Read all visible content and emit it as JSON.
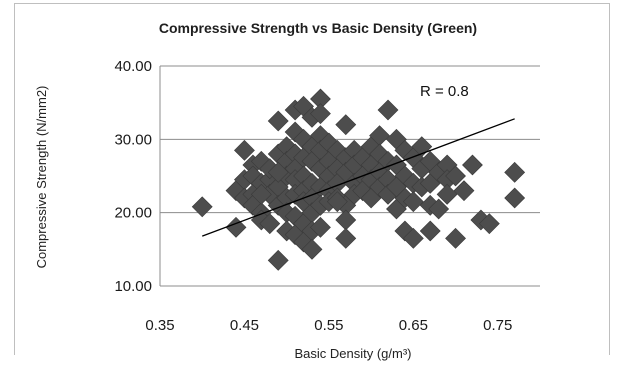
{
  "chart_data": {
    "type": "scatter",
    "title": "Compressive Strength vs Basic Density (Green)",
    "xlabel": "Basic Density (g/m³)",
    "ylabel": "Compressive Strength (N/mm2)",
    "xlim": [
      0.35,
      0.8
    ],
    "ylim": [
      10,
      40
    ],
    "xticks": [
      "0.35",
      "0.45",
      "0.55",
      "0.65",
      "0.75"
    ],
    "yticks": [
      "10.00",
      "20.00",
      "30.00",
      "40.00"
    ],
    "grid": "horizontal",
    "marker": "diamond",
    "marker_color": "#4d4d4d",
    "annotation": "R = 0.8",
    "trendline": {
      "x": [
        0.4,
        0.77
      ],
      "y": [
        16.8,
        32.8
      ]
    },
    "points": [
      [
        0.4,
        20.8
      ],
      [
        0.44,
        18.0
      ],
      [
        0.44,
        23.0
      ],
      [
        0.45,
        28.5
      ],
      [
        0.45,
        24.5
      ],
      [
        0.45,
        22.0
      ],
      [
        0.46,
        26.5
      ],
      [
        0.46,
        25.0
      ],
      [
        0.46,
        22.5
      ],
      [
        0.46,
        21.0
      ],
      [
        0.47,
        27.0
      ],
      [
        0.47,
        24.0
      ],
      [
        0.47,
        20.0
      ],
      [
        0.47,
        19.0
      ],
      [
        0.48,
        24.5
      ],
      [
        0.48,
        22.5
      ],
      [
        0.48,
        18.5
      ],
      [
        0.48,
        26.0
      ],
      [
        0.49,
        32.5
      ],
      [
        0.49,
        28.0
      ],
      [
        0.49,
        23.5
      ],
      [
        0.49,
        21.0
      ],
      [
        0.49,
        13.5
      ],
      [
        0.5,
        29.0
      ],
      [
        0.5,
        27.0
      ],
      [
        0.5,
        25.0
      ],
      [
        0.5,
        22.0
      ],
      [
        0.5,
        20.0
      ],
      [
        0.5,
        17.5
      ],
      [
        0.51,
        34.0
      ],
      [
        0.51,
        31.0
      ],
      [
        0.51,
        28.0
      ],
      [
        0.51,
        26.0
      ],
      [
        0.51,
        24.5
      ],
      [
        0.51,
        22.5
      ],
      [
        0.51,
        19.5
      ],
      [
        0.51,
        17.0
      ],
      [
        0.52,
        34.5
      ],
      [
        0.52,
        30.0
      ],
      [
        0.52,
        27.5
      ],
      [
        0.52,
        25.0
      ],
      [
        0.52,
        23.0
      ],
      [
        0.52,
        21.5
      ],
      [
        0.52,
        18.5
      ],
      [
        0.52,
        16.0
      ],
      [
        0.53,
        33.0
      ],
      [
        0.53,
        29.0
      ],
      [
        0.53,
        27.0
      ],
      [
        0.53,
        24.0
      ],
      [
        0.53,
        22.0
      ],
      [
        0.53,
        20.0
      ],
      [
        0.53,
        17.5
      ],
      [
        0.53,
        15.0
      ],
      [
        0.54,
        35.5
      ],
      [
        0.54,
        33.5
      ],
      [
        0.54,
        30.5
      ],
      [
        0.54,
        28.5
      ],
      [
        0.54,
        26.0
      ],
      [
        0.54,
        23.5
      ],
      [
        0.54,
        21.0
      ],
      [
        0.54,
        18.0
      ],
      [
        0.55,
        29.5
      ],
      [
        0.55,
        27.0
      ],
      [
        0.55,
        25.0
      ],
      [
        0.55,
        23.0
      ],
      [
        0.55,
        21.5
      ],
      [
        0.56,
        28.5
      ],
      [
        0.56,
        26.0
      ],
      [
        0.56,
        24.0
      ],
      [
        0.56,
        22.0
      ],
      [
        0.57,
        32.0
      ],
      [
        0.57,
        27.5
      ],
      [
        0.57,
        25.5
      ],
      [
        0.57,
        21.0
      ],
      [
        0.57,
        19.0
      ],
      [
        0.57,
        16.5
      ],
      [
        0.58,
        28.5
      ],
      [
        0.58,
        26.5
      ],
      [
        0.58,
        24.0
      ],
      [
        0.58,
        22.5
      ],
      [
        0.59,
        27.5
      ],
      [
        0.59,
        25.0
      ],
      [
        0.59,
        23.0
      ],
      [
        0.6,
        29.0
      ],
      [
        0.6,
        26.5
      ],
      [
        0.6,
        24.5
      ],
      [
        0.6,
        22.0
      ],
      [
        0.61,
        30.5
      ],
      [
        0.61,
        28.0
      ],
      [
        0.61,
        25.5
      ],
      [
        0.61,
        23.5
      ],
      [
        0.62,
        34.0
      ],
      [
        0.62,
        27.0
      ],
      [
        0.62,
        24.5
      ],
      [
        0.62,
        22.5
      ],
      [
        0.63,
        30.0
      ],
      [
        0.63,
        26.5
      ],
      [
        0.63,
        20.5
      ],
      [
        0.64,
        28.5
      ],
      [
        0.64,
        25.0
      ],
      [
        0.64,
        22.0
      ],
      [
        0.64,
        17.5
      ],
      [
        0.65,
        27.5
      ],
      [
        0.65,
        24.0
      ],
      [
        0.65,
        21.5
      ],
      [
        0.65,
        16.5
      ],
      [
        0.66,
        29.0
      ],
      [
        0.66,
        26.0
      ],
      [
        0.66,
        23.5
      ],
      [
        0.67,
        27.0
      ],
      [
        0.67,
        24.0
      ],
      [
        0.67,
        21.0
      ],
      [
        0.67,
        17.5
      ],
      [
        0.68,
        25.5
      ],
      [
        0.68,
        20.5
      ],
      [
        0.69,
        26.5
      ],
      [
        0.69,
        24.5
      ],
      [
        0.69,
        22.5
      ],
      [
        0.7,
        25.0
      ],
      [
        0.7,
        16.5
      ],
      [
        0.71,
        23.0
      ],
      [
        0.72,
        26.5
      ],
      [
        0.73,
        19.0
      ],
      [
        0.74,
        18.5
      ],
      [
        0.77,
        25.5
      ],
      [
        0.77,
        22.0
      ],
      [
        0.56,
        21.5
      ],
      [
        0.49,
        25.5
      ],
      [
        0.47,
        22.5
      ],
      [
        0.63,
        23.5
      ]
    ]
  }
}
